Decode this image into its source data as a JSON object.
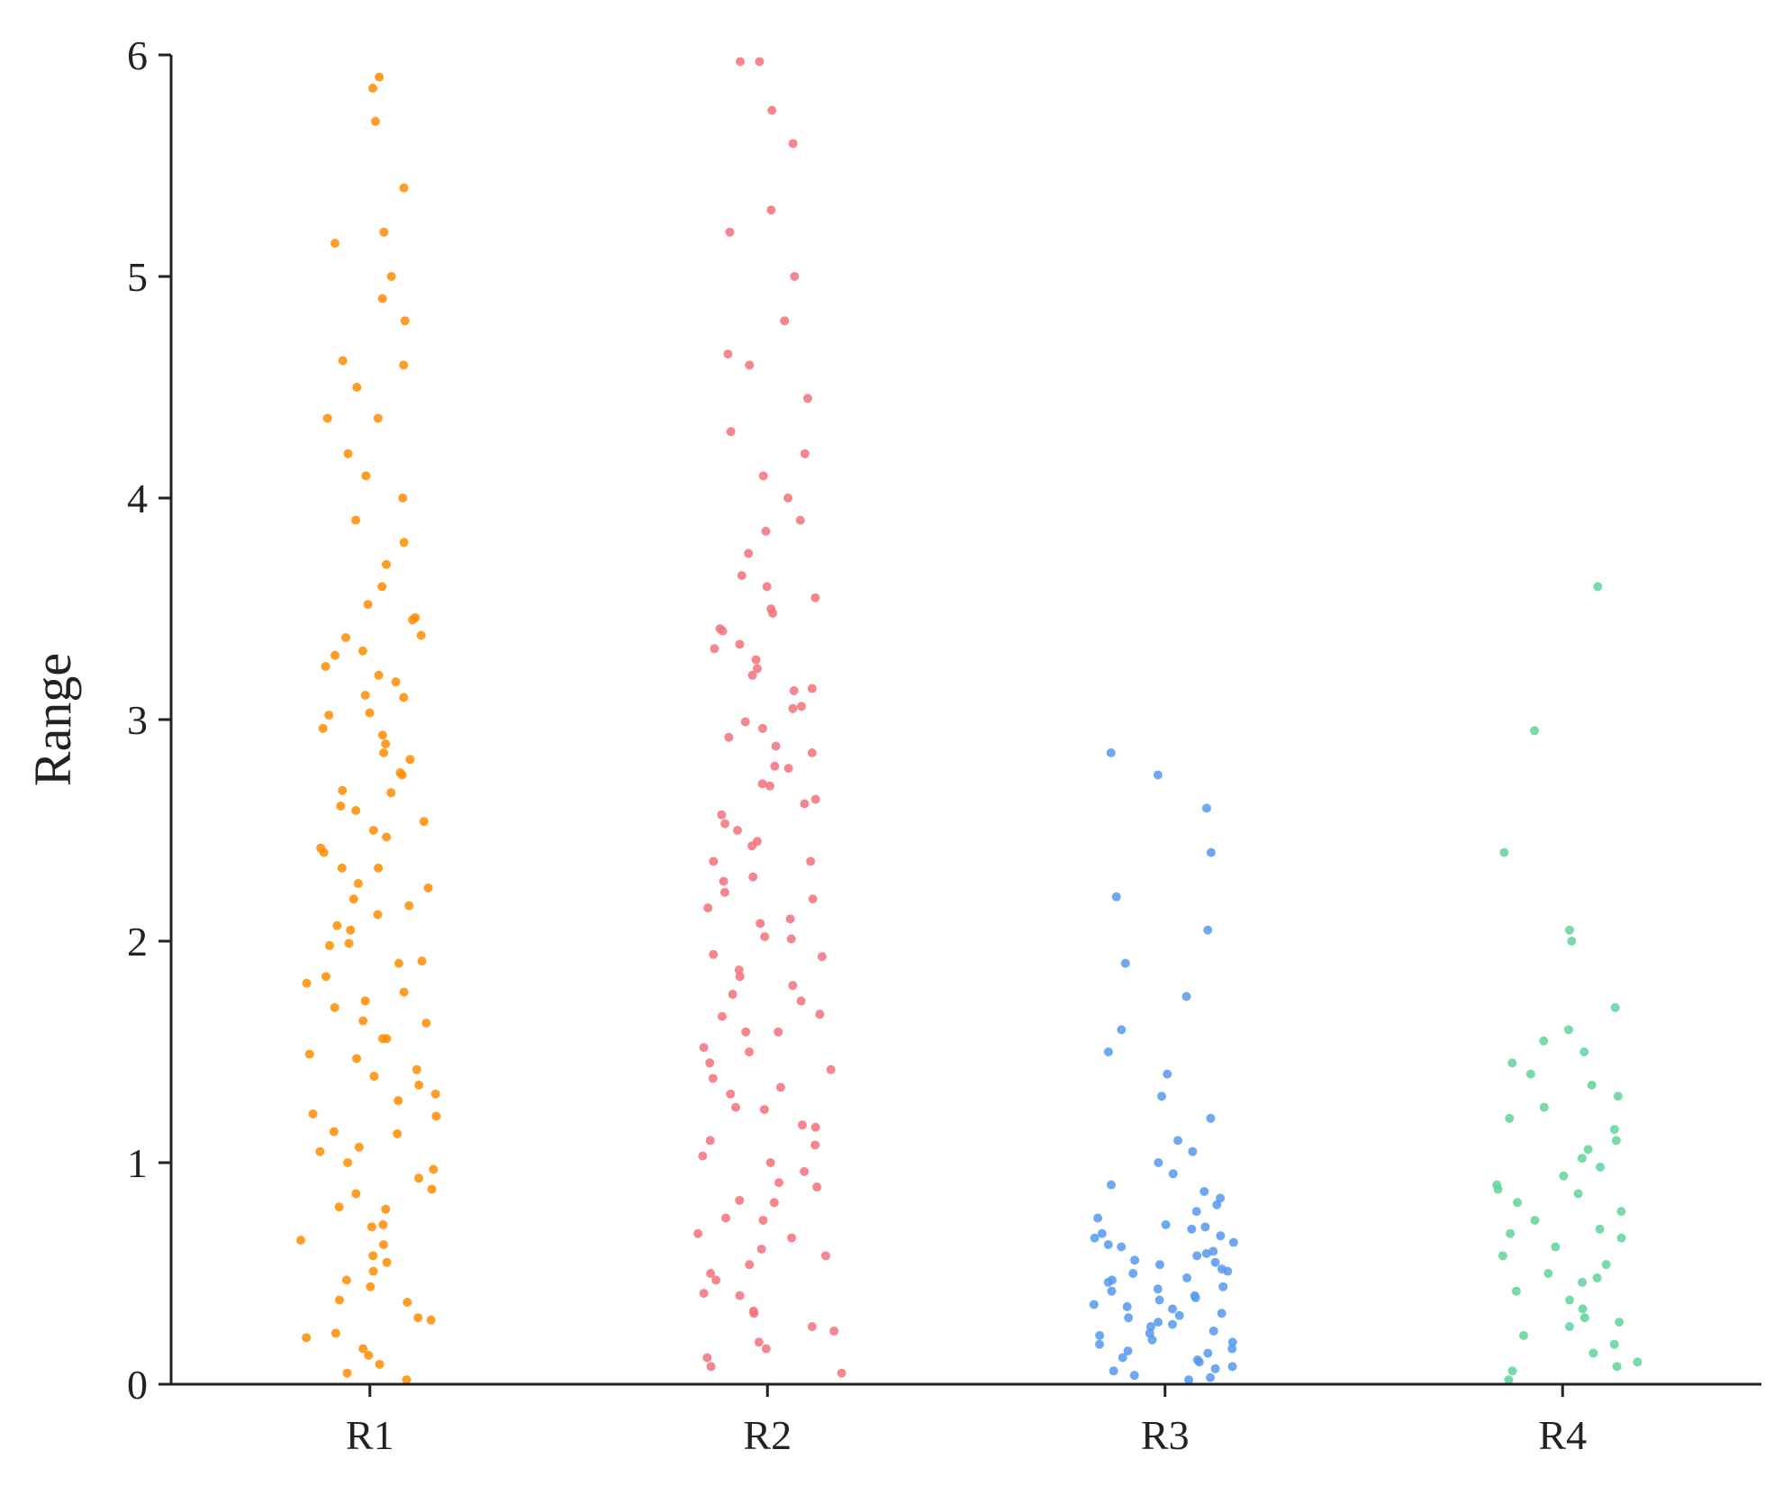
{
  "chart_data": {
    "type": "strip",
    "y_label": "Range",
    "categories": [
      "R1",
      "R2",
      "R3",
      "R4"
    ],
    "ylim": [
      0,
      6
    ],
    "yticks": [
      0,
      1,
      2,
      3,
      4,
      5,
      6
    ],
    "series": [
      {
        "name": "R1",
        "color": "#ff8c00",
        "values": [
          0.02,
          0.09,
          0.16,
          0.23,
          0.3,
          0.37,
          0.44,
          0.51,
          0.58,
          0.65,
          0.72,
          0.79,
          0.86,
          0.93,
          1.0,
          1.07,
          1.14,
          1.21,
          1.28,
          1.35,
          1.42,
          1.49,
          1.56,
          1.63,
          1.7,
          1.77,
          1.84,
          1.91,
          1.98,
          2.05,
          2.12,
          2.19,
          2.26,
          2.33,
          2.4,
          2.47,
          2.54,
          2.61,
          2.68,
          2.75,
          2.82,
          2.89,
          2.96,
          3.03,
          3.1,
          3.17,
          3.24,
          3.31,
          3.38,
          3.45,
          3.52,
          0.05,
          0.13,
          0.21,
          0.29,
          0.38,
          0.47,
          0.55,
          0.63,
          0.71,
          0.8,
          0.88,
          0.97,
          1.05,
          1.13,
          1.22,
          1.31,
          1.39,
          1.47,
          1.56,
          1.64,
          1.73,
          1.81,
          1.9,
          1.99,
          2.07,
          2.16,
          2.24,
          2.33,
          2.42,
          2.5,
          2.59,
          2.67,
          2.76,
          2.85,
          2.93,
          3.02,
          3.11,
          3.2,
          3.29,
          3.37,
          3.46,
          3.6,
          3.7,
          3.8,
          3.9,
          4.0,
          4.1,
          4.2,
          4.36,
          4.36,
          4.5,
          4.6,
          4.62,
          4.8,
          4.9,
          5.0,
          5.15,
          5.2,
          5.4,
          5.7,
          5.85,
          5.9
        ]
      },
      {
        "name": "R2",
        "color": "#f4717a",
        "values": [
          0.05,
          0.12,
          0.19,
          0.26,
          0.33,
          0.4,
          0.47,
          0.54,
          0.61,
          0.68,
          0.75,
          0.82,
          0.89,
          0.96,
          1.03,
          1.1,
          1.17,
          1.24,
          1.31,
          1.38,
          1.45,
          1.52,
          1.59,
          1.66,
          1.73,
          1.8,
          1.87,
          1.94,
          2.01,
          2.08,
          2.15,
          2.22,
          2.29,
          2.36,
          2.43,
          2.5,
          2.57,
          2.64,
          2.71,
          2.78,
          2.85,
          2.92,
          2.99,
          3.06,
          3.13,
          3.2,
          3.27,
          3.34,
          3.41,
          3.48,
          3.55,
          0.08,
          0.16,
          0.24,
          0.32,
          0.41,
          0.5,
          0.58,
          0.66,
          0.74,
          0.83,
          0.91,
          1.0,
          1.08,
          1.16,
          1.25,
          1.34,
          1.42,
          1.5,
          1.59,
          1.67,
          1.76,
          1.84,
          1.93,
          2.02,
          2.1,
          2.19,
          2.27,
          2.36,
          2.45,
          2.53,
          2.62,
          2.7,
          2.79,
          2.88,
          2.96,
          3.05,
          3.14,
          3.23,
          3.32,
          3.4,
          3.5,
          3.6,
          3.65,
          3.75,
          3.85,
          3.9,
          4.0,
          4.1,
          4.2,
          4.3,
          4.45,
          4.6,
          4.65,
          4.8,
          5.0,
          5.2,
          5.3,
          5.6,
          5.75,
          5.97,
          5.97
        ]
      },
      {
        "name": "R3",
        "color": "#5599ee",
        "values": [
          0.02,
          0.04,
          0.06,
          0.08,
          0.1,
          0.12,
          0.14,
          0.16,
          0.18,
          0.2,
          0.22,
          0.24,
          0.26,
          0.28,
          0.3,
          0.32,
          0.34,
          0.36,
          0.38,
          0.4,
          0.42,
          0.44,
          0.46,
          0.48,
          0.5,
          0.52,
          0.54,
          0.56,
          0.58,
          0.6,
          0.62,
          0.64,
          0.66,
          0.68,
          0.7,
          0.72,
          0.75,
          0.78,
          0.81,
          0.84,
          0.87,
          0.9,
          0.03,
          0.07,
          0.11,
          0.15,
          0.19,
          0.23,
          0.27,
          0.31,
          0.35,
          0.39,
          0.43,
          0.47,
          0.51,
          0.55,
          0.59,
          0.63,
          0.67,
          0.71,
          0.95,
          1.0,
          1.05,
          1.1,
          1.2,
          1.3,
          1.4,
          1.5,
          1.6,
          1.75,
          1.9,
          2.05,
          2.2,
          2.4,
          2.6,
          2.75,
          2.85
        ]
      },
      {
        "name": "R4",
        "color": "#5ed39a",
        "values": [
          0.02,
          0.06,
          0.1,
          0.14,
          0.18,
          0.22,
          0.26,
          0.3,
          0.34,
          0.38,
          0.42,
          0.46,
          0.5,
          0.54,
          0.58,
          0.62,
          0.66,
          0.7,
          0.74,
          0.78,
          0.82,
          0.86,
          0.9,
          0.94,
          0.98,
          1.02,
          1.06,
          1.1,
          1.15,
          1.2,
          1.25,
          1.3,
          1.35,
          1.4,
          1.45,
          1.5,
          1.55,
          1.6,
          1.7,
          0.08,
          0.28,
          0.48,
          0.68,
          0.88,
          2.0,
          2.05,
          2.4,
          2.95,
          3.6
        ]
      }
    ]
  }
}
